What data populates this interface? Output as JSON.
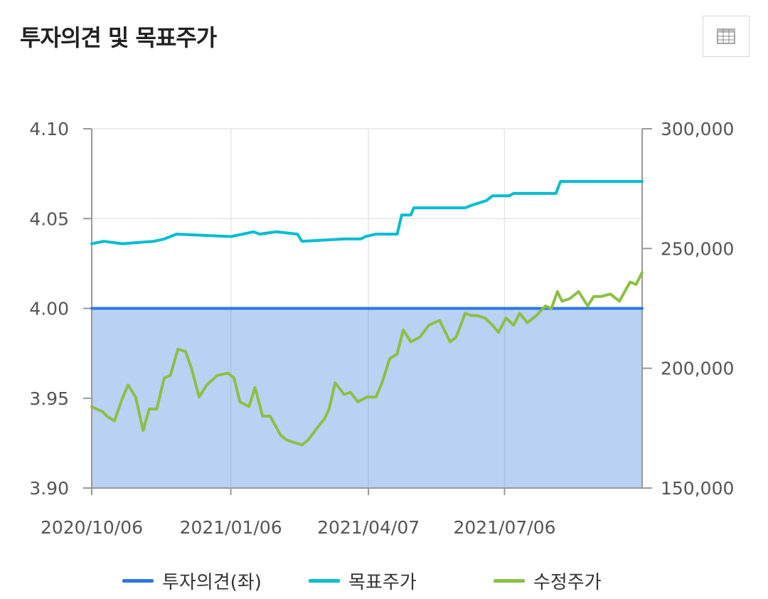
{
  "title": "투자의견 및 목표주가",
  "toolbar": {
    "table_icon": "table-icon"
  },
  "legend": [
    {
      "label": "투자의견(좌)",
      "color": "#2f76e3"
    },
    {
      "label": "목표주가",
      "color": "#00bcd0"
    },
    {
      "label": "수정주가",
      "color": "#8cbf44"
    }
  ],
  "chart_data": {
    "type": "line",
    "x_ticks": [
      "2020/10/06",
      "2021/01/06",
      "2021/04/07",
      "2021/07/06"
    ],
    "x_range": [
      "2020/10/06",
      "2021/10/05"
    ],
    "y_left": {
      "min": 3.9,
      "max": 4.1,
      "ticks": [
        "4.10",
        "4.05",
        "4.00",
        "3.95",
        "3.90"
      ]
    },
    "y_right": {
      "min": 150000,
      "max": 300000,
      "ticks": [
        "300,000",
        "250,000",
        "200,000",
        "150,000"
      ]
    },
    "grid": true,
    "legend_position": "bottom",
    "series": [
      {
        "name": "투자의견(좌)",
        "axis": "left",
        "color": "#2f76e3",
        "fill": "#b5d0f3",
        "points": [
          [
            "2020/10/06",
            4.0
          ],
          [
            "2021/10/05",
            4.0
          ]
        ]
      },
      {
        "name": "목표주가",
        "axis": "right",
        "color": "#00bcd0",
        "points": [
          [
            "2020/10/06",
            252000
          ],
          [
            "2020/10/14",
            253000
          ],
          [
            "2020/10/26",
            252000
          ],
          [
            "2020/11/16",
            253000
          ],
          [
            "2020/11/23",
            254000
          ],
          [
            "2020/12/01",
            256000
          ],
          [
            "2021/01/06",
            255000
          ],
          [
            "2021/01/14",
            256000
          ],
          [
            "2021/01/21",
            257000
          ],
          [
            "2021/01/25",
            256000
          ],
          [
            "2021/02/05",
            257000
          ],
          [
            "2021/02/19",
            256000
          ],
          [
            "2021/02/22",
            253000
          ],
          [
            "2021/03/22",
            254000
          ],
          [
            "2021/04/02",
            254000
          ],
          [
            "2021/04/05",
            255000
          ],
          [
            "2021/04/12",
            256000
          ],
          [
            "2021/04/26",
            256000
          ],
          [
            "2021/04/29",
            264000
          ],
          [
            "2021/05/05",
            264000
          ],
          [
            "2021/05/07",
            267000
          ],
          [
            "2021/06/10",
            267000
          ],
          [
            "2021/06/14",
            268000
          ],
          [
            "2021/06/24",
            270000
          ],
          [
            "2021/06/28",
            272000
          ],
          [
            "2021/07/09",
            272000
          ],
          [
            "2021/07/12",
            273000
          ],
          [
            "2021/08/09",
            273000
          ],
          [
            "2021/08/12",
            278000
          ],
          [
            "2021/10/05",
            278000
          ]
        ]
      },
      {
        "name": "수정주가",
        "axis": "right",
        "color": "#8cbf44",
        "points": [
          [
            "2020/10/06",
            184000
          ],
          [
            "2020/10/09",
            183000
          ],
          [
            "2020/10/13",
            182000
          ],
          [
            "2020/10/16",
            180000
          ],
          [
            "2020/10/21",
            178000
          ],
          [
            "2020/10/26",
            187000
          ],
          [
            "2020/10/30",
            193000
          ],
          [
            "2020/11/04",
            188000
          ],
          [
            "2020/11/09",
            174000
          ],
          [
            "2020/11/13",
            183000
          ],
          [
            "2020/11/18",
            183000
          ],
          [
            "2020/11/23",
            196000
          ],
          [
            "2020/11/27",
            197000
          ],
          [
            "2020/12/02",
            208000
          ],
          [
            "2020/12/07",
            207000
          ],
          [
            "2020/12/11",
            200000
          ],
          [
            "2020/12/16",
            188000
          ],
          [
            "2020/12/21",
            193000
          ],
          [
            "2020/12/28",
            197000
          ],
          [
            "2021/01/04",
            198000
          ],
          [
            "2021/01/08",
            196000
          ],
          [
            "2021/01/12",
            186000
          ],
          [
            "2021/01/18",
            184000
          ],
          [
            "2021/01/22",
            192000
          ],
          [
            "2021/01/27",
            180000
          ],
          [
            "2021/02/01",
            180000
          ],
          [
            "2021/02/08",
            172000
          ],
          [
            "2021/02/12",
            170000
          ],
          [
            "2021/02/17",
            169000
          ],
          [
            "2021/02/22",
            168000
          ],
          [
            "2021/02/26",
            170000
          ],
          [
            "2021/03/04",
            175000
          ],
          [
            "2021/03/09",
            179000
          ],
          [
            "2021/03/12",
            183000
          ],
          [
            "2021/03/16",
            194000
          ],
          [
            "2021/03/22",
            189000
          ],
          [
            "2021/03/26",
            190000
          ],
          [
            "2021/03/31",
            186000
          ],
          [
            "2021/04/06",
            188000
          ],
          [
            "2021/04/12",
            188000
          ],
          [
            "2021/04/16",
            194000
          ],
          [
            "2021/04/21",
            204000
          ],
          [
            "2021/04/26",
            206000
          ],
          [
            "2021/04/30",
            216000
          ],
          [
            "2021/05/05",
            211000
          ],
          [
            "2021/05/11",
            213000
          ],
          [
            "2021/05/17",
            218000
          ],
          [
            "2021/05/24",
            220000
          ],
          [
            "2021/05/31",
            211000
          ],
          [
            "2021/06/04",
            213000
          ],
          [
            "2021/06/10",
            223000
          ],
          [
            "2021/06/14",
            222000
          ],
          [
            "2021/06/18",
            222000
          ],
          [
            "2021/06/23",
            221000
          ],
          [
            "2021/06/28",
            218000
          ],
          [
            "2021/07/02",
            215000
          ],
          [
            "2021/07/07",
            221000
          ],
          [
            "2021/07/12",
            218000
          ],
          [
            "2021/07/16",
            223000
          ],
          [
            "2021/07/21",
            219000
          ],
          [
            "2021/07/27",
            222000
          ],
          [
            "2021/08/02",
            226000
          ],
          [
            "2021/08/06",
            225000
          ],
          [
            "2021/08/10",
            232000
          ],
          [
            "2021/08/13",
            228000
          ],
          [
            "2021/08/18",
            229000
          ],
          [
            "2021/08/24",
            232000
          ],
          [
            "2021/08/30",
            226000
          ],
          [
            "2021/09/03",
            230000
          ],
          [
            "2021/09/08",
            230000
          ],
          [
            "2021/09/14",
            231000
          ],
          [
            "2021/09/20",
            228000
          ],
          [
            "2021/09/27",
            236000
          ],
          [
            "2021/10/01",
            235000
          ],
          [
            "2021/10/05",
            240000
          ]
        ]
      }
    ]
  }
}
